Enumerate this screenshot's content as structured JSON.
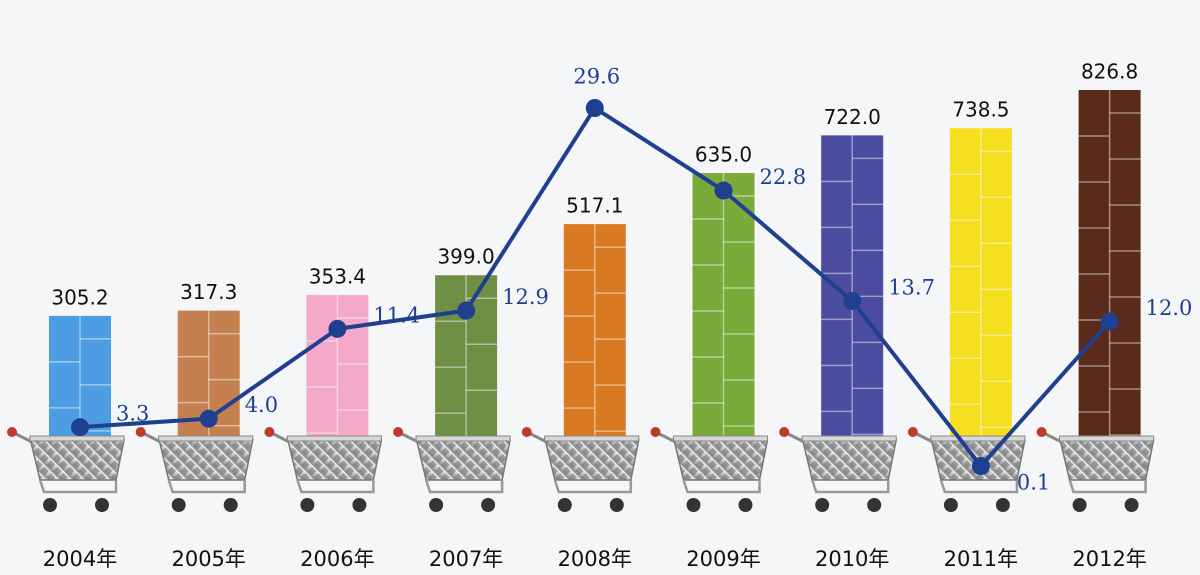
{
  "chart_data": {
    "type": "bar",
    "categories": [
      "2004年",
      "2005年",
      "2006年",
      "2007年",
      "2008年",
      "2009年",
      "2010年",
      "2011年",
      "2012年"
    ],
    "series": [
      {
        "type": "bar",
        "values": [
          305.2,
          317.3,
          353.4,
          399.0,
          517.1,
          635.0,
          722.0,
          738.5,
          826.8
        ],
        "value_labels": [
          "305.2",
          "317.3",
          "353.4",
          "399.0",
          "517.1",
          "635.0",
          "722.0",
          "738.5",
          "826.8"
        ],
        "colors": [
          "#4d9de2",
          "#c4804f",
          "#f5a9c9",
          "#6f8f45",
          "#d97a22",
          "#7aab3a",
          "#4b4b9f",
          "#f6df1e",
          "#5a2b1b"
        ]
      },
      {
        "type": "line",
        "values": [
          3.3,
          4.0,
          11.4,
          12.9,
          29.6,
          22.8,
          13.7,
          0.1,
          12.0
        ],
        "value_labels": [
          "3.3",
          "4.0",
          "11.4",
          "12.9",
          "29.6",
          "22.8",
          "13.7",
          "0.1",
          "12.0"
        ],
        "color": "#1f3f8f"
      }
    ]
  }
}
